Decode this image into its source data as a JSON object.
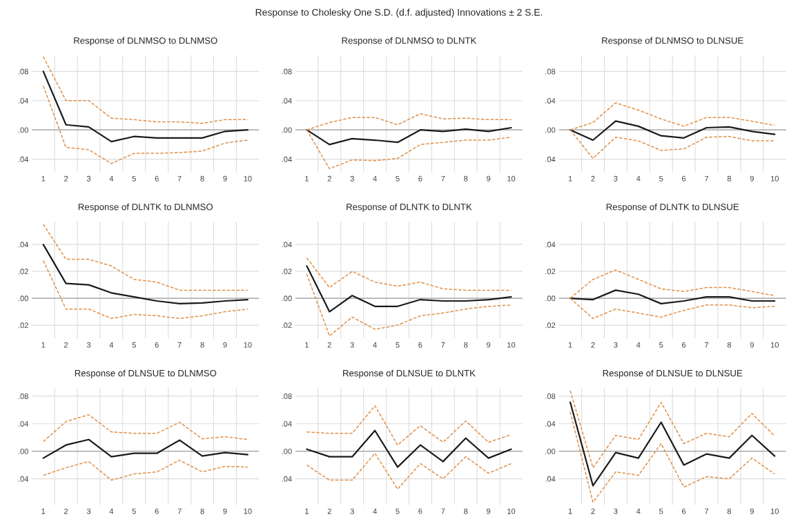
{
  "chart_data": [
    {
      "type": "line",
      "title": "Response of DLNMSO to DLNMSO",
      "annotations": [
        "Response to Cholesky One S.D. (d.f. adjusted) Innovations ± 2 S.E."
      ],
      "categories": [
        "1",
        "2",
        "3",
        "4",
        "5",
        "6",
        "7",
        "8",
        "9",
        "10"
      ],
      "ylim": [
        -0.058,
        0.102
      ],
      "yticks": [
        {
          "value": -0.04,
          "label": ".04"
        },
        {
          "value": 0,
          "label": ".00"
        },
        {
          "value": 0.04,
          "label": ".04"
        },
        {
          "value": 0.08,
          "label": ".08"
        }
      ],
      "grid": true,
      "ref_lines": [
        {
          "axis": "y",
          "value": 0,
          "color": "#a0a0a0"
        }
      ],
      "series": [
        {
          "color": "#1a1a1a",
          "line_style": "solid",
          "values": [
            0.08,
            0.007,
            0.004,
            -0.016,
            -0.009,
            -0.011,
            -0.011,
            -0.011,
            -0.002,
            0.0
          ]
        },
        {
          "color": "#e0904a",
          "line_style": "dashed",
          "values": [
            0.1,
            0.04,
            0.04,
            0.016,
            0.014,
            0.011,
            0.011,
            0.009,
            0.014,
            0.014
          ]
        },
        {
          "color": "#e0904a",
          "line_style": "dashed",
          "values": [
            0.06,
            -0.024,
            -0.027,
            -0.046,
            -0.032,
            -0.032,
            -0.031,
            -0.029,
            -0.018,
            -0.014
          ]
        }
      ]
    },
    {
      "type": "line",
      "title": "Response of DLNMSO to DLNTK",
      "categories": [
        "1",
        "2",
        "3",
        "4",
        "5",
        "6",
        "7",
        "8",
        "9",
        "10"
      ],
      "ylim": [
        -0.058,
        0.102
      ],
      "yticks": [
        {
          "value": -0.04,
          "label": ".04"
        },
        {
          "value": 0,
          "label": ".00"
        },
        {
          "value": 0.04,
          "label": ".04"
        },
        {
          "value": 0.08,
          "label": ".08"
        }
      ],
      "grid": true,
      "ref_lines": [
        {
          "axis": "y",
          "value": 0,
          "color": "#a0a0a0"
        }
      ],
      "series": [
        {
          "color": "#1a1a1a",
          "line_style": "solid",
          "values": [
            0.0,
            -0.02,
            -0.012,
            -0.014,
            -0.017,
            0.0,
            -0.002,
            0.001,
            -0.002,
            0.003
          ]
        },
        {
          "color": "#e0904a",
          "line_style": "dashed",
          "values": [
            0.0,
            0.01,
            0.017,
            0.017,
            0.007,
            0.022,
            0.015,
            0.016,
            0.014,
            0.014
          ]
        },
        {
          "color": "#e0904a",
          "line_style": "dashed",
          "values": [
            0.0,
            -0.053,
            -0.041,
            -0.042,
            -0.039,
            -0.02,
            -0.017,
            -0.014,
            -0.014,
            -0.01
          ]
        }
      ]
    },
    {
      "type": "line",
      "title": "Response of DLNMSO to DLNSUE",
      "categories": [
        "1",
        "2",
        "3",
        "4",
        "5",
        "6",
        "7",
        "8",
        "9",
        "10"
      ],
      "ylim": [
        -0.058,
        0.102
      ],
      "yticks": [
        {
          "value": -0.04,
          "label": ".04"
        },
        {
          "value": 0,
          "label": ".00"
        },
        {
          "value": 0.04,
          "label": ".04"
        },
        {
          "value": 0.08,
          "label": ".08"
        }
      ],
      "grid": true,
      "ref_lines": [
        {
          "axis": "y",
          "value": 0,
          "color": "#a0a0a0"
        }
      ],
      "series": [
        {
          "color": "#1a1a1a",
          "line_style": "solid",
          "values": [
            0.0,
            -0.014,
            0.012,
            0.005,
            -0.008,
            -0.011,
            0.003,
            0.004,
            -0.002,
            -0.006
          ]
        },
        {
          "color": "#e0904a",
          "line_style": "dashed",
          "values": [
            0.0,
            0.01,
            0.037,
            0.027,
            0.015,
            0.005,
            0.017,
            0.017,
            0.012,
            0.006
          ]
        },
        {
          "color": "#e0904a",
          "line_style": "dashed",
          "values": [
            0.0,
            -0.039,
            -0.01,
            -0.015,
            -0.028,
            -0.026,
            -0.01,
            -0.009,
            -0.015,
            -0.015
          ]
        }
      ]
    },
    {
      "type": "line",
      "title": "Response of DLNTK to DLNMSO",
      "categories": [
        "1",
        "2",
        "3",
        "4",
        "5",
        "6",
        "7",
        "8",
        "9",
        "10"
      ],
      "ylim": [
        -0.03,
        0.057
      ],
      "yticks": [
        {
          "value": -0.02,
          "label": ".02"
        },
        {
          "value": 0,
          "label": ".00"
        },
        {
          "value": 0.02,
          "label": ".02"
        },
        {
          "value": 0.04,
          "label": ".04"
        }
      ],
      "grid": true,
      "ref_lines": [
        {
          "axis": "y",
          "value": 0,
          "color": "#a0a0a0"
        }
      ],
      "series": [
        {
          "color": "#1a1a1a",
          "line_style": "solid",
          "values": [
            0.04,
            0.011,
            0.01,
            0.004,
            0.001,
            -0.002,
            -0.004,
            -0.0035,
            -0.002,
            -0.001
          ]
        },
        {
          "color": "#e0904a",
          "line_style": "dashed",
          "values": [
            0.055,
            0.029,
            0.029,
            0.024,
            0.014,
            0.012,
            0.006,
            0.006,
            0.006,
            0.006
          ]
        },
        {
          "color": "#e0904a",
          "line_style": "dashed",
          "values": [
            0.028,
            -0.008,
            -0.008,
            -0.015,
            -0.012,
            -0.013,
            -0.015,
            -0.013,
            -0.01,
            -0.008
          ]
        }
      ]
    },
    {
      "type": "line",
      "title": "Response of DLNTK to DLNTK",
      "categories": [
        "1",
        "2",
        "3",
        "4",
        "5",
        "6",
        "7",
        "8",
        "9",
        "10"
      ],
      "ylim": [
        -0.03,
        0.057
      ],
      "yticks": [
        {
          "value": -0.02,
          "label": ".02"
        },
        {
          "value": 0,
          "label": ".00"
        },
        {
          "value": 0.02,
          "label": ".02"
        },
        {
          "value": 0.04,
          "label": ".04"
        }
      ],
      "grid": true,
      "ref_lines": [
        {
          "axis": "y",
          "value": 0,
          "color": "#a0a0a0"
        }
      ],
      "series": [
        {
          "color": "#1a1a1a",
          "line_style": "solid",
          "values": [
            0.024,
            -0.01,
            0.002,
            -0.006,
            -0.006,
            -0.001,
            -0.002,
            -0.002,
            -0.001,
            0.001
          ]
        },
        {
          "color": "#e0904a",
          "line_style": "dashed",
          "values": [
            0.03,
            0.008,
            0.02,
            0.012,
            0.009,
            0.012,
            0.007,
            0.006,
            0.006,
            0.006
          ]
        },
        {
          "color": "#e0904a",
          "line_style": "dashed",
          "values": [
            0.018,
            -0.028,
            -0.014,
            -0.023,
            -0.02,
            -0.013,
            -0.011,
            -0.008,
            -0.006,
            -0.005
          ]
        }
      ]
    },
    {
      "type": "line",
      "title": "Response of DLNTK to DLNSUE",
      "categories": [
        "1",
        "2",
        "3",
        "4",
        "5",
        "6",
        "7",
        "8",
        "9",
        "10"
      ],
      "ylim": [
        -0.03,
        0.057
      ],
      "yticks": [
        {
          "value": -0.02,
          "label": ".02"
        },
        {
          "value": 0,
          "label": ".00"
        },
        {
          "value": 0.02,
          "label": ".02"
        },
        {
          "value": 0.04,
          "label": ".04"
        }
      ],
      "grid": true,
      "ref_lines": [
        {
          "axis": "y",
          "value": 0,
          "color": "#a0a0a0"
        }
      ],
      "series": [
        {
          "color": "#1a1a1a",
          "line_style": "solid",
          "values": [
            0.0,
            -0.001,
            0.006,
            0.003,
            -0.004,
            -0.002,
            0.001,
            0.001,
            -0.002,
            -0.002
          ]
        },
        {
          "color": "#e0904a",
          "line_style": "dashed",
          "values": [
            0.0,
            0.014,
            0.021,
            0.014,
            0.007,
            0.005,
            0.008,
            0.008,
            0.005,
            0.002
          ]
        },
        {
          "color": "#e0904a",
          "line_style": "dashed",
          "values": [
            0.0,
            -0.015,
            -0.008,
            -0.011,
            -0.014,
            -0.009,
            -0.005,
            -0.005,
            -0.007,
            -0.006
          ]
        }
      ]
    },
    {
      "type": "line",
      "title": "Response of DLNSUE to DLNMSO",
      "categories": [
        "1",
        "2",
        "3",
        "4",
        "5",
        "6",
        "7",
        "8",
        "9",
        "10"
      ],
      "ylim": [
        -0.078,
        0.092
      ],
      "yticks": [
        {
          "value": -0.04,
          "label": ".04"
        },
        {
          "value": 0,
          "label": ".00"
        },
        {
          "value": 0.04,
          "label": ".04"
        },
        {
          "value": 0.08,
          "label": ".08"
        }
      ],
      "grid": true,
      "ref_lines": [
        {
          "axis": "y",
          "value": 0,
          "color": "#a0a0a0"
        }
      ],
      "series": [
        {
          "color": "#1a1a1a",
          "line_style": "solid",
          "values": [
            -0.01,
            0.009,
            0.017,
            -0.008,
            -0.003,
            -0.003,
            0.016,
            -0.007,
            -0.002,
            -0.005
          ]
        },
        {
          "color": "#e0904a",
          "line_style": "dashed",
          "values": [
            0.014,
            0.043,
            0.053,
            0.028,
            0.026,
            0.026,
            0.042,
            0.018,
            0.021,
            0.017
          ]
        },
        {
          "color": "#e0904a",
          "line_style": "dashed",
          "values": [
            -0.035,
            -0.024,
            -0.015,
            -0.042,
            -0.033,
            -0.03,
            -0.013,
            -0.03,
            -0.022,
            -0.023
          ]
        }
      ]
    },
    {
      "type": "line",
      "title": "Response of DLNSUE to DLNTK",
      "categories": [
        "1",
        "2",
        "3",
        "4",
        "5",
        "6",
        "7",
        "8",
        "9",
        "10"
      ],
      "ylim": [
        -0.078,
        0.092
      ],
      "yticks": [
        {
          "value": -0.04,
          "label": ".04"
        },
        {
          "value": 0,
          "label": ".00"
        },
        {
          "value": 0.04,
          "label": ".04"
        },
        {
          "value": 0.08,
          "label": ".08"
        }
      ],
      "grid": true,
      "ref_lines": [
        {
          "axis": "y",
          "value": 0,
          "color": "#a0a0a0"
        }
      ],
      "series": [
        {
          "color": "#1a1a1a",
          "line_style": "solid",
          "values": [
            0.003,
            -0.008,
            -0.008,
            0.03,
            -0.023,
            0.009,
            -0.015,
            0.019,
            -0.01,
            0.003
          ]
        },
        {
          "color": "#e0904a",
          "line_style": "dashed",
          "values": [
            0.028,
            0.026,
            0.026,
            0.066,
            0.009,
            0.037,
            0.013,
            0.044,
            0.013,
            0.024
          ]
        },
        {
          "color": "#e0904a",
          "line_style": "dashed",
          "values": [
            -0.02,
            -0.042,
            -0.042,
            -0.003,
            -0.055,
            -0.018,
            -0.04,
            -0.008,
            -0.032,
            -0.018
          ]
        }
      ]
    },
    {
      "type": "line",
      "title": "Response of DLNSUE to DLNSUE",
      "categories": [
        "1",
        "2",
        "3",
        "4",
        "5",
        "6",
        "7",
        "8",
        "9",
        "10"
      ],
      "ylim": [
        -0.078,
        0.092
      ],
      "yticks": [
        {
          "value": -0.04,
          "label": ".04"
        },
        {
          "value": 0,
          "label": ".00"
        },
        {
          "value": 0.04,
          "label": ".04"
        },
        {
          "value": 0.08,
          "label": ".08"
        }
      ],
      "grid": true,
      "ref_lines": [
        {
          "axis": "y",
          "value": 0,
          "color": "#a0a0a0"
        }
      ],
      "series": [
        {
          "color": "#1a1a1a",
          "line_style": "solid",
          "values": [
            0.071,
            -0.05,
            -0.002,
            -0.01,
            0.042,
            -0.02,
            -0.004,
            -0.01,
            0.023,
            -0.007
          ]
        },
        {
          "color": "#e0904a",
          "line_style": "dashed",
          "values": [
            0.088,
            -0.024,
            0.023,
            0.017,
            0.071,
            0.011,
            0.026,
            0.021,
            0.055,
            0.022
          ]
        },
        {
          "color": "#e0904a",
          "line_style": "dashed",
          "values": [
            0.057,
            -0.074,
            -0.03,
            -0.035,
            0.011,
            -0.052,
            -0.037,
            -0.04,
            -0.01,
            -0.033
          ]
        }
      ]
    }
  ]
}
